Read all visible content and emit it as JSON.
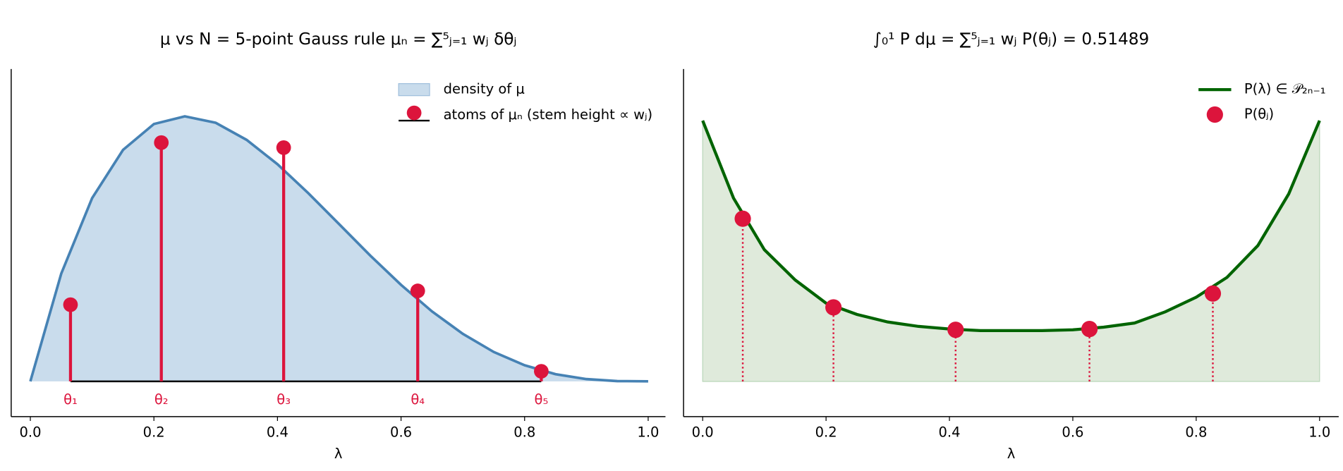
{
  "chart_data": [
    {
      "type": "area",
      "title": "μ vs N = 5-point Gauss rule μₙ = ∑⁵ⱼ₌₁ wⱼ δθⱼ",
      "x_label": "λ",
      "xlim": [
        -0.031,
        1.028
      ],
      "xticks": [
        {
          "value": 0,
          "label": "0.0"
        },
        {
          "value": 0.2,
          "label": "0.2"
        },
        {
          "value": 0.4,
          "label": "0.4"
        },
        {
          "value": 0.6,
          "label": "0.6"
        },
        {
          "value": 0.8,
          "label": "0.8"
        },
        {
          "value": 1,
          "label": "1.0"
        }
      ],
      "ylim": [
        -0.281,
        2.486
      ],
      "legend": "upper right",
      "x": [
        0,
        0.05,
        0.1,
        0.15,
        0.2,
        0.25,
        0.3,
        0.35,
        0.4,
        0.45,
        0.5,
        0.55,
        0.6,
        0.65,
        0.7,
        0.75,
        0.8,
        0.85,
        0.9,
        0.95,
        1
      ],
      "series": [
        {
          "name": "density of μ",
          "color": "#4682b4",
          "fill": "#c9dcec",
          "values": [
            0,
            0.857,
            1.458,
            1.842,
            2.048,
            2.109,
            2.058,
            1.922,
            1.728,
            1.497,
            1.25,
            1.002,
            0.768,
            0.557,
            0.378,
            0.234,
            0.128,
            0.057,
            0.018,
            0.002,
            0
          ]
        }
      ],
      "stems": {
        "name": "atoms of μₙ (stem height ∝ wⱼ)",
        "color": "#dc143c",
        "x": [
          0.065,
          0.212,
          0.41,
          0.627,
          0.827
        ],
        "values": [
          0.61,
          1.9,
          1.86,
          0.72,
          0.08
        ],
        "labels": [
          "θ₁",
          "θ₂",
          "θ₃",
          "θ₄",
          "θ₅"
        ]
      }
    },
    {
      "type": "line",
      "title": "∫₀¹ P dμ = ∑⁵ⱼ₌₁ wⱼ P(θⱼ) = 0.51489",
      "x_label": "λ",
      "xlim": [
        -0.031,
        1.031
      ],
      "xticks": [
        {
          "value": 0,
          "label": "0.0"
        },
        {
          "value": 0.2,
          "label": "0.2"
        },
        {
          "value": 0.4,
          "label": "0.4"
        },
        {
          "value": 0.6,
          "label": "0.6"
        },
        {
          "value": 0.8,
          "label": "0.8"
        },
        {
          "value": 1,
          "label": "1.0"
        }
      ],
      "ylim": [
        -0.135,
        1.198
      ],
      "legend": "upper right",
      "x": [
        0,
        0.05,
        0.1,
        0.15,
        0.2,
        0.25,
        0.3,
        0.35,
        0.4,
        0.45,
        0.5,
        0.55,
        0.6,
        0.65,
        0.7,
        0.75,
        0.8,
        0.85,
        0.9,
        0.95,
        1
      ],
      "series": [
        {
          "name": "P(λ) ∈ 𝒫₂ₙ₋₁",
          "color": "#006400",
          "fill": "#dfeadb",
          "values": [
            1.0,
            0.703,
            0.505,
            0.389,
            0.3,
            0.257,
            0.228,
            0.211,
            0.201,
            0.195,
            0.195,
            0.195,
            0.198,
            0.208,
            0.224,
            0.267,
            0.323,
            0.399,
            0.521,
            0.719,
            1.0
          ]
        }
      ],
      "points": {
        "name": "P(θⱼ)",
        "color": "#dc143c",
        "x": [
          0.065,
          0.212,
          0.41,
          0.627,
          0.827
        ],
        "values": [
          0.624,
          0.284,
          0.198,
          0.201,
          0.337
        ]
      }
    }
  ]
}
